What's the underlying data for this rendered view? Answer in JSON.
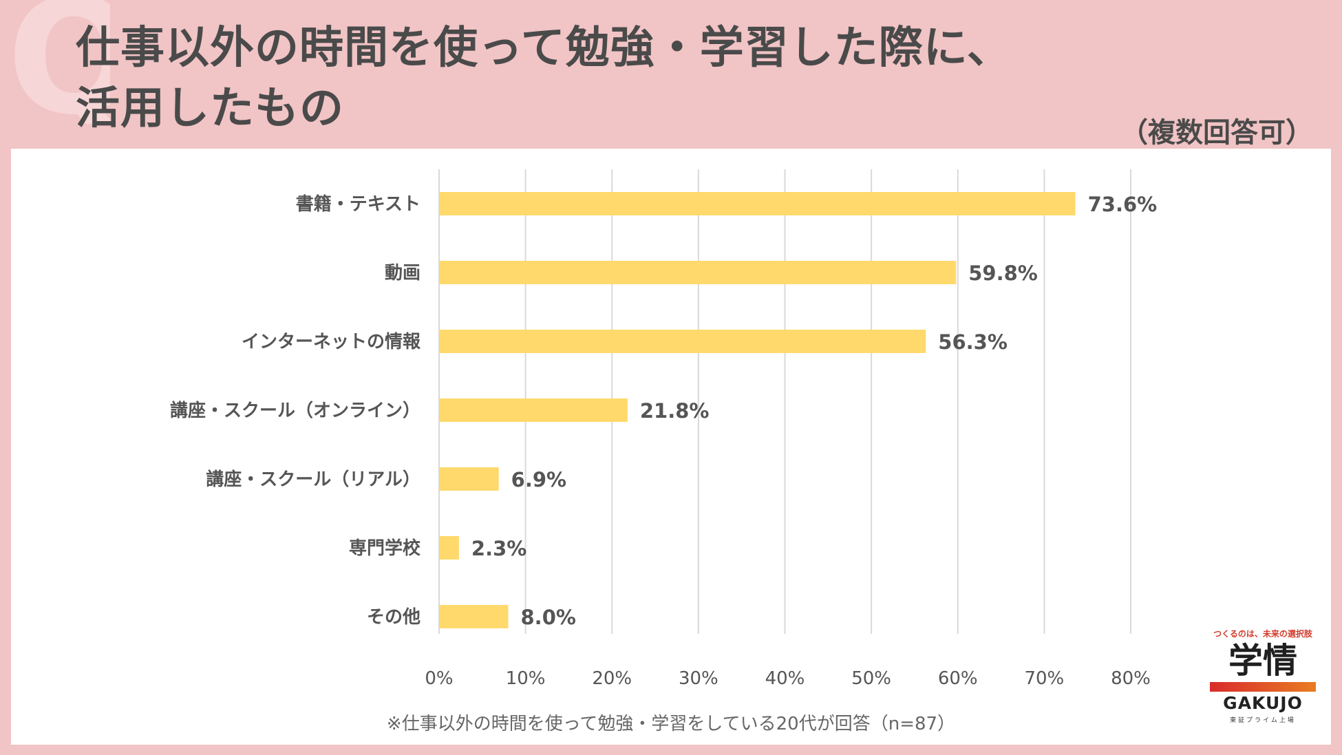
{
  "header": {
    "bg_letter": "Q",
    "title_line1": "仕事以外の時間を使って勉強・学習した際に、",
    "title_line2": "活用したもの",
    "multiple_answers": "（複数回答可）"
  },
  "chart_data": {
    "type": "bar",
    "orientation": "horizontal",
    "categories": [
      "書籍・テキスト",
      "動画",
      "インターネットの情報",
      "講座・スクール（オンライン）",
      "講座・スクール（リアル）",
      "専門学校",
      "その他"
    ],
    "values": [
      73.6,
      59.8,
      56.3,
      21.8,
      6.9,
      2.3,
      8.0
    ],
    "value_labels": [
      "73.6%",
      "59.8%",
      "56.3%",
      "21.8%",
      "6.9%",
      "2.3%",
      "8.0%"
    ],
    "xlim": [
      0,
      80
    ],
    "xticks": [
      0,
      10,
      20,
      30,
      40,
      50,
      60,
      70,
      80
    ],
    "xtick_labels": [
      "0%",
      "10%",
      "20%",
      "30%",
      "40%",
      "50%",
      "60%",
      "70%",
      "80%"
    ],
    "grid": true,
    "bar_color": "#ffd96b",
    "title": "",
    "xlabel": "",
    "ylabel": ""
  },
  "footnote": "※仕事以外の時間を使って勉強・学習をしている20代が回答（n=87）",
  "logo": {
    "tagline": "つくるのは、未来の選択肢",
    "name": "学情",
    "english": "GAKUJO",
    "sub": "東証プライム上場"
  }
}
